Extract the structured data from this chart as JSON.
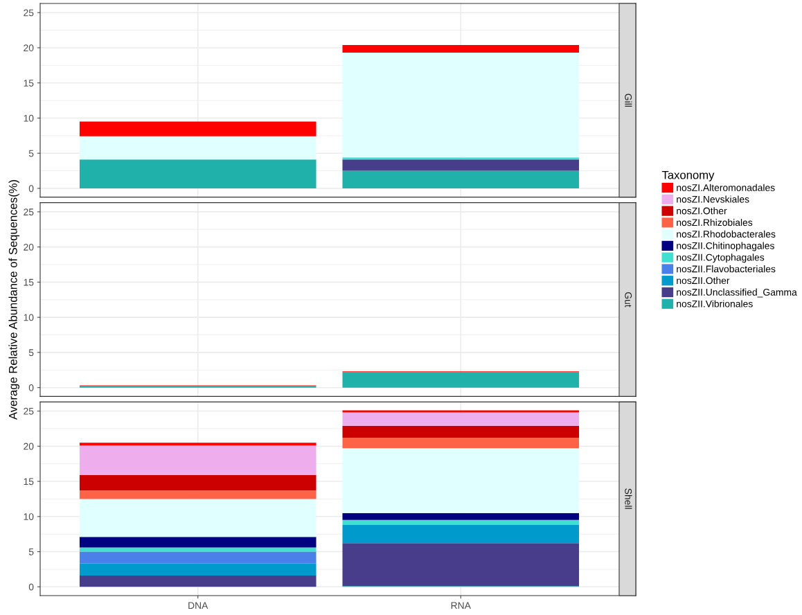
{
  "chart_data": [
    {
      "type": "bar",
      "title": "Gill",
      "stacked": true,
      "categories": [
        null,
        null
      ],
      "ylim": [
        -1.25,
        26.3
      ],
      "yticks": [
        0,
        5,
        10,
        15,
        20,
        25
      ],
      "grid": true,
      "tick_labels": "y",
      "series": [
        {
          "color": "#20b2aa",
          "values": [
            4.1,
            2.5
          ]
        },
        {
          "color": "#483d8b",
          "values": [
            null,
            1.6
          ]
        },
        {
          "color": "#40e0d0",
          "values": [
            null,
            0.3
          ]
        },
        {
          "color": "#e0ffff",
          "values": [
            3.3,
            14.9
          ]
        },
        {
          "color": "#ff0000",
          "values": [
            2.1,
            1.1
          ]
        }
      ]
    },
    {
      "type": "bar",
      "title": "Gut",
      "stacked": true,
      "categories": [
        null,
        null
      ],
      "ylim": [
        -1.25,
        26.3
      ],
      "yticks": [
        0,
        5,
        10,
        15,
        20,
        25
      ],
      "grid": true,
      "tick_labels": "y",
      "ylabel": "Average Relative Abundance of Sequences(%)",
      "series": [
        {
          "color": "#20b2aa",
          "values": [
            0.2,
            2.2
          ]
        },
        {
          "color": "#ff0000",
          "values": [
            0.1,
            0.1
          ]
        }
      ]
    },
    {
      "type": "bar",
      "title": "Shell",
      "stacked": true,
      "categories": [
        "DNA",
        "RNA"
      ],
      "ylim": [
        -1.25,
        26.3
      ],
      "yticks": [
        0,
        5,
        10,
        15,
        20,
        25
      ],
      "grid": true,
      "legend": "right",
      "legend_title": "Taxonomy",
      "series": [
        {
          "name": "nosZII.Vibrionales",
          "color": "#20b2aa",
          "values": [
            null,
            0.1
          ]
        },
        {
          "name": "nosZII.Unclassified_Gamma",
          "color": "#483d8b",
          "values": [
            1.6,
            6.1
          ]
        },
        {
          "name": "nosZII.Other",
          "color": "#009acd",
          "values": [
            1.7,
            2.6
          ]
        },
        {
          "name": "nosZII.Flavobacteriales",
          "color": "#4a80e8",
          "values": [
            1.7,
            null
          ]
        },
        {
          "name": "nosZII.Cytophagales",
          "color": "#40e0d0",
          "values": [
            0.6,
            0.7
          ]
        },
        {
          "name": "nosZII.Chitinophagales",
          "color": "#000080",
          "values": [
            1.5,
            1.0
          ]
        },
        {
          "name": "nosZI.Rhodobacterales",
          "color": "#e0ffff",
          "values": [
            5.4,
            9.2
          ]
        },
        {
          "name": "nosZI.Rhizobiales",
          "color": "#ff6347",
          "values": [
            1.2,
            1.5
          ]
        },
        {
          "name": "nosZI.Other",
          "color": "#cd0000",
          "values": [
            2.2,
            1.7
          ]
        },
        {
          "name": "nosZI.Nevskiales",
          "color": "#eeaeee",
          "values": [
            4.2,
            1.9
          ]
        },
        {
          "name": "nosZI.Alteromonadales",
          "color": "#ff0000",
          "values": [
            0.4,
            0.3
          ]
        }
      ]
    }
  ]
}
